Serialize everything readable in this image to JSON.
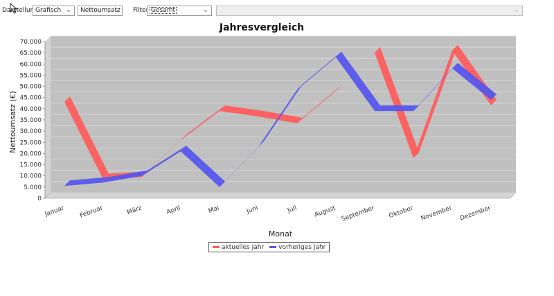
{
  "toolbar": {
    "darstellung_label": "Darstellung",
    "darstellung_value": "Grafisch",
    "measure_value": "Nettoumsatz",
    "filter_label": "Filter",
    "filter_value": "Gesamt",
    "extra_value": "",
    "chevron_icon": "chevron-down-icon"
  },
  "colors": {
    "current_year": "#ff5a5a",
    "previous_year": "#5555ee",
    "plot_bg": "#c0c0c0",
    "plot_wall": "#d4d4d4"
  },
  "chart_data": {
    "type": "line",
    "title": "Jahresvergleich",
    "xlabel": "Monat",
    "ylabel": "Nettoumsatz (€)",
    "categories": [
      "Januar",
      "Februar",
      "März",
      "April",
      "Mai",
      "Juni",
      "Juli",
      "August",
      "September",
      "Oktober",
      "November",
      "Dezember"
    ],
    "series": [
      {
        "name": "aktuelles Jahr",
        "values": [
          43000,
          8500,
          9500,
          26000,
          39000,
          36500,
          33500,
          48000,
          65000,
          18000,
          66000,
          41500
        ]
      },
      {
        "name": "vorheriges Jahr",
        "values": [
          5500,
          7000,
          10000,
          21000,
          5000,
          23000,
          48500,
          63000,
          39000,
          39000,
          58000,
          44000
        ]
      }
    ],
    "ylim": [
      0,
      70000
    ],
    "yticks": [
      "0",
      "5.000",
      "10.000",
      "15.000",
      "20.000",
      "25.000",
      "30.000",
      "35.000",
      "40.000",
      "45.000",
      "50.000",
      "55.000",
      "60.000",
      "65.000",
      "70.000"
    ],
    "ytick_values": [
      0,
      5000,
      10000,
      15000,
      20000,
      25000,
      30000,
      35000,
      40000,
      45000,
      50000,
      55000,
      60000,
      65000,
      70000
    ],
    "grid": true,
    "legend_position": "bottom-center"
  }
}
